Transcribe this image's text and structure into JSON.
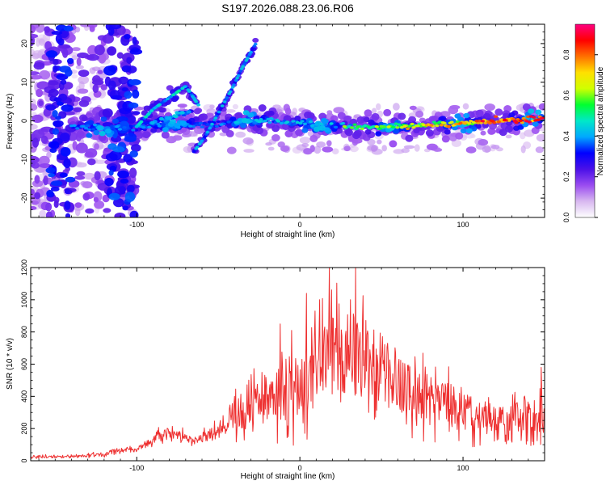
{
  "figure_title": "S197.2026.088.23.06.R06",
  "chart_data": [
    {
      "type": "heatmap",
      "title": "S197.2026.088.23.06.R06",
      "xlabel": "Height of straight line (km)",
      "ylabel": "Frequency (Hz)",
      "xlim": [
        -165,
        150
      ],
      "ylim": [
        -25,
        25
      ],
      "xticks": [
        -100,
        0,
        100
      ],
      "xtick_labels": [
        "-100",
        "0",
        "100"
      ],
      "yticks": [
        -20,
        -10,
        0,
        10,
        20
      ],
      "ytick_labels": [
        "-20",
        "-10",
        "0",
        "10",
        "20"
      ],
      "colorbar": {
        "label": "Normalized spectral amplitude",
        "range": [
          0,
          0.95
        ],
        "ticks": [
          0,
          0.2,
          0.4,
          0.6,
          0.8
        ],
        "tick_labels": [
          "0.0",
          "0.2",
          "0.4",
          "0.6",
          "0.8"
        ],
        "colors": [
          "#ffffff",
          "#d8b8f0",
          "#9a4cf0",
          "#4a10e8",
          "#0000ff",
          "#00a8ff",
          "#00e8c8",
          "#00ff30",
          "#d0ff00",
          "#ffe000",
          "#ff7000",
          "#ff0000",
          "#ff0080"
        ]
      },
      "features": [
        {
          "name": "main-band",
          "x": [
            -140,
            -110,
            -80,
            -50,
            -30,
            0,
            30,
            60,
            90,
            120,
            148
          ],
          "y": [
            -1.5,
            -2,
            -1,
            -1,
            0.3,
            -0.5,
            -1.5,
            -1.5,
            -0.8,
            0,
            0.5
          ],
          "peak_amplitude": 0.9
        },
        {
          "name": "rising-streak",
          "x": [
            -65,
            -58,
            -50,
            -42,
            -35,
            -27
          ],
          "y": [
            -8,
            -4,
            2,
            8,
            14,
            20
          ],
          "peak_amplitude": 0.45
        },
        {
          "name": "upper-branch",
          "x": [
            -100,
            -90,
            -80,
            -70,
            -62
          ],
          "y": [
            -1.5,
            3,
            6,
            9,
            4
          ],
          "peak_amplitude": 0.5
        },
        {
          "name": "left-noise-region",
          "x": [
            -165,
            -100
          ],
          "y": [
            -25,
            25
          ],
          "peak_amplitude": 0.35
        }
      ]
    },
    {
      "type": "line",
      "title": "",
      "xlabel": "Height of straight line (km)",
      "ylabel": "SNR (10 * v/v)",
      "xlim": [
        -165,
        150
      ],
      "ylim": [
        0,
        1200
      ],
      "xticks": [
        -100,
        0,
        100
      ],
      "xtick_labels": [
        "-100",
        "0",
        "100"
      ],
      "yticks": [
        0,
        200,
        400,
        600,
        800,
        1000,
        1200
      ],
      "ytick_labels": [
        "0",
        "200",
        "400",
        "600",
        "800",
        "1000",
        "1200"
      ],
      "series": [
        {
          "name": "SNR",
          "color": "#ee3030",
          "x": [
            -165,
            -140,
            -120,
            -110,
            -100,
            -90,
            -80,
            -70,
            -60,
            -50,
            -40,
            -30,
            -20,
            -10,
            0,
            10,
            20,
            30,
            40,
            50,
            60,
            70,
            80,
            90,
            100,
            110,
            120,
            130,
            140,
            150
          ],
          "values": [
            25,
            25,
            40,
            70,
            65,
            140,
            170,
            150,
            140,
            180,
            280,
            330,
            380,
            430,
            480,
            560,
            640,
            650,
            640,
            560,
            470,
            420,
            390,
            360,
            300,
            270,
            250,
            260,
            270,
            280
          ],
          "spread": [
            10,
            10,
            15,
            20,
            20,
            40,
            45,
            40,
            45,
            70,
            120,
            160,
            200,
            240,
            270,
            300,
            330,
            340,
            330,
            300,
            240,
            200,
            180,
            170,
            150,
            140,
            120,
            120,
            130,
            130
          ],
          "peaks": [
            {
              "x": 18,
              "y": 1200
            },
            {
              "x": 34,
              "y": 1200
            },
            {
              "x": 4,
              "y": 1040
            },
            {
              "x": 31,
              "y": 1000
            },
            {
              "x": 12,
              "y": 1000
            },
            {
              "x": -12,
              "y": 850
            },
            {
              "x": -40,
              "y": 400
            },
            {
              "x": 148,
              "y": 580
            }
          ]
        }
      ]
    }
  ]
}
